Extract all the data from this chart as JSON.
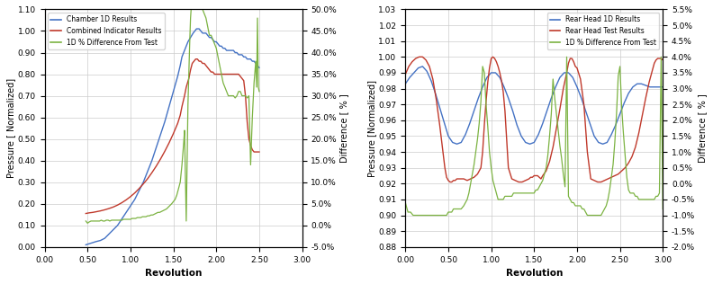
{
  "chart1": {
    "xlabel": "Revolution",
    "ylabel_left": "Pressure [ Normalized]",
    "ylabel_right": "Difference [ % ]",
    "xlim": [
      0.0,
      3.0
    ],
    "ylim_left": [
      0.0,
      1.1
    ],
    "ylim_right": [
      -0.05,
      0.5
    ],
    "yticks_left": [
      0.0,
      0.1,
      0.2,
      0.3,
      0.4,
      0.5,
      0.6,
      0.7,
      0.8,
      0.9,
      1.0,
      1.1
    ],
    "yticks_right_vals": [
      -0.05,
      0.0,
      0.05,
      0.1,
      0.15,
      0.2,
      0.25,
      0.3,
      0.35,
      0.4,
      0.45,
      0.5
    ],
    "yticks_right_labels": [
      "-5.0%",
      "0.0%",
      "5.0%",
      "10.0%",
      "15.0%",
      "20.0%",
      "25.0%",
      "30.0%",
      "35.0%",
      "40.0%",
      "45.0%",
      "50.0%"
    ],
    "xticks": [
      0.0,
      0.5,
      1.0,
      1.5,
      2.0,
      2.5,
      3.0
    ],
    "legend": [
      "Chamber 1D Results",
      "Combined Indicator Results",
      "1D % Difference From Test"
    ],
    "colors": [
      "#4472C4",
      "#C0392B",
      "#7CB342"
    ],
    "blue_x": [
      0.48,
      0.52,
      0.56,
      0.6,
      0.65,
      0.7,
      0.75,
      0.8,
      0.85,
      0.9,
      0.95,
      1.0,
      1.05,
      1.1,
      1.15,
      1.2,
      1.25,
      1.3,
      1.35,
      1.4,
      1.45,
      1.5,
      1.55,
      1.58,
      1.6,
      1.63,
      1.65,
      1.67,
      1.7,
      1.73,
      1.75,
      1.77,
      1.8,
      1.82,
      1.84,
      1.86,
      1.88,
      1.9,
      1.92,
      1.94,
      1.96,
      1.98,
      2.0,
      2.02,
      2.04,
      2.06,
      2.08,
      2.1,
      2.12,
      2.14,
      2.16,
      2.18,
      2.2,
      2.22,
      2.24,
      2.26,
      2.28,
      2.3,
      2.32,
      2.34,
      2.36,
      2.38,
      2.4,
      2.42,
      2.44,
      2.46,
      2.48,
      2.5
    ],
    "blue_y": [
      0.01,
      0.015,
      0.02,
      0.025,
      0.03,
      0.04,
      0.06,
      0.08,
      0.1,
      0.13,
      0.16,
      0.19,
      0.22,
      0.26,
      0.3,
      0.35,
      0.4,
      0.46,
      0.52,
      0.58,
      0.65,
      0.72,
      0.79,
      0.84,
      0.88,
      0.91,
      0.93,
      0.95,
      0.97,
      0.99,
      1.0,
      1.01,
      1.01,
      1.0,
      0.99,
      0.99,
      0.99,
      0.98,
      0.97,
      0.97,
      0.96,
      0.95,
      0.95,
      0.94,
      0.93,
      0.93,
      0.92,
      0.92,
      0.91,
      0.91,
      0.91,
      0.91,
      0.91,
      0.9,
      0.9,
      0.89,
      0.89,
      0.89,
      0.88,
      0.88,
      0.87,
      0.87,
      0.87,
      0.86,
      0.86,
      0.85,
      0.84,
      0.83
    ],
    "red_x": [
      0.48,
      0.52,
      0.56,
      0.6,
      0.65,
      0.7,
      0.75,
      0.8,
      0.85,
      0.9,
      0.95,
      1.0,
      1.05,
      1.1,
      1.15,
      1.2,
      1.25,
      1.3,
      1.35,
      1.4,
      1.45,
      1.5,
      1.55,
      1.58,
      1.6,
      1.63,
      1.65,
      1.68,
      1.7,
      1.72,
      1.74,
      1.76,
      1.78,
      1.8,
      1.82,
      1.84,
      1.86,
      1.88,
      1.9,
      1.92,
      1.94,
      1.96,
      1.98,
      2.0,
      2.02,
      2.04,
      2.06,
      2.08,
      2.1,
      2.12,
      2.14,
      2.16,
      2.18,
      2.2,
      2.22,
      2.24,
      2.26,
      2.28,
      2.3,
      2.32,
      2.34,
      2.36,
      2.38,
      2.4,
      2.42,
      2.44,
      2.46,
      2.48,
      2.5
    ],
    "red_y": [
      0.155,
      0.158,
      0.16,
      0.163,
      0.167,
      0.172,
      0.178,
      0.185,
      0.194,
      0.205,
      0.218,
      0.233,
      0.25,
      0.27,
      0.292,
      0.316,
      0.344,
      0.374,
      0.407,
      0.443,
      0.482,
      0.525,
      0.572,
      0.61,
      0.65,
      0.7,
      0.74,
      0.78,
      0.82,
      0.85,
      0.86,
      0.87,
      0.87,
      0.86,
      0.86,
      0.85,
      0.85,
      0.84,
      0.83,
      0.82,
      0.81,
      0.81,
      0.8,
      0.8,
      0.8,
      0.8,
      0.8,
      0.8,
      0.8,
      0.8,
      0.8,
      0.8,
      0.8,
      0.8,
      0.8,
      0.8,
      0.8,
      0.79,
      0.78,
      0.77,
      0.7,
      0.58,
      0.5,
      0.47,
      0.45,
      0.44,
      0.44,
      0.44,
      0.44
    ],
    "green_x": [
      0.48,
      0.5,
      0.52,
      0.54,
      0.56,
      0.58,
      0.6,
      0.62,
      0.64,
      0.66,
      0.68,
      0.7,
      0.72,
      0.74,
      0.76,
      0.78,
      0.8,
      0.82,
      0.84,
      0.86,
      0.88,
      0.9,
      0.92,
      0.94,
      0.96,
      0.98,
      1.0,
      1.02,
      1.04,
      1.06,
      1.08,
      1.1,
      1.12,
      1.14,
      1.16,
      1.18,
      1.2,
      1.22,
      1.24,
      1.26,
      1.28,
      1.3,
      1.32,
      1.34,
      1.36,
      1.38,
      1.4,
      1.42,
      1.44,
      1.46,
      1.48,
      1.5,
      1.52,
      1.54,
      1.56,
      1.58,
      1.6,
      1.62,
      1.63,
      1.65,
      1.67,
      1.69,
      1.7,
      1.72,
      1.74,
      1.76,
      1.78,
      1.8,
      1.82,
      1.84,
      1.86,
      1.88,
      1.9,
      1.92,
      1.94,
      1.96,
      1.98,
      2.0,
      2.02,
      2.04,
      2.06,
      2.08,
      2.1,
      2.12,
      2.14,
      2.16,
      2.18,
      2.2,
      2.22,
      2.24,
      2.26,
      2.28,
      2.3,
      2.32,
      2.34,
      2.36,
      2.38,
      2.4,
      2.42,
      2.44,
      2.46,
      2.47,
      2.48,
      2.49,
      2.5
    ],
    "green_y": [
      0.01,
      0.005,
      0.008,
      0.01,
      0.01,
      0.01,
      0.01,
      0.01,
      0.01,
      0.012,
      0.01,
      0.01,
      0.012,
      0.012,
      0.01,
      0.012,
      0.012,
      0.012,
      0.012,
      0.012,
      0.012,
      0.012,
      0.014,
      0.014,
      0.014,
      0.014,
      0.014,
      0.016,
      0.016,
      0.016,
      0.018,
      0.018,
      0.018,
      0.02,
      0.02,
      0.02,
      0.022,
      0.022,
      0.024,
      0.024,
      0.026,
      0.028,
      0.03,
      0.03,
      0.032,
      0.034,
      0.036,
      0.038,
      0.042,
      0.046,
      0.05,
      0.055,
      0.06,
      0.07,
      0.085,
      0.1,
      0.14,
      0.19,
      0.22,
      0.01,
      0.28,
      0.42,
      0.48,
      0.54,
      0.57,
      0.58,
      0.58,
      0.55,
      0.52,
      0.5,
      0.49,
      0.48,
      0.46,
      0.44,
      0.44,
      0.43,
      0.42,
      0.41,
      0.39,
      0.37,
      0.35,
      0.33,
      0.32,
      0.31,
      0.3,
      0.3,
      0.3,
      0.3,
      0.295,
      0.3,
      0.31,
      0.31,
      0.3,
      0.3,
      0.3,
      0.295,
      0.3,
      0.14,
      0.25,
      0.33,
      0.38,
      0.32,
      0.48,
      0.32,
      0.31
    ]
  },
  "chart2": {
    "xlabel": "Revolution",
    "ylabel_left": "Pressure [Normalized]",
    "ylabel_right": "Difference [ % ]",
    "xlim": [
      0.0,
      3.0
    ],
    "ylim_left": [
      0.88,
      1.03
    ],
    "ylim_right": [
      -0.02,
      0.055
    ],
    "yticks_left": [
      0.88,
      0.89,
      0.9,
      0.91,
      0.92,
      0.93,
      0.94,
      0.95,
      0.96,
      0.97,
      0.98,
      0.99,
      1.0,
      1.01,
      1.02,
      1.03
    ],
    "yticks_right_vals": [
      -0.02,
      -0.015,
      -0.01,
      -0.005,
      0.0,
      0.005,
      0.01,
      0.015,
      0.02,
      0.025,
      0.03,
      0.035,
      0.04,
      0.045,
      0.05,
      0.055
    ],
    "yticks_right_labels": [
      "-2.0%",
      "-1.5%",
      "-1.0%",
      "-0.5%",
      "0.0%",
      "0.5%",
      "1.0%",
      "1.5%",
      "2.0%",
      "2.5%",
      "3.0%",
      "3.5%",
      "4.0%",
      "4.5%",
      "5.0%",
      "5.5%"
    ],
    "xticks": [
      0.0,
      0.5,
      1.0,
      1.5,
      2.0,
      2.5,
      3.0
    ],
    "legend": [
      "Rear Head 1D Results",
      "Rear Head Test Results",
      "1D % Difference From Test"
    ],
    "colors": [
      "#4472C4",
      "#C0392B",
      "#7CB342"
    ],
    "blue_x": [
      0.0,
      0.05,
      0.1,
      0.15,
      0.2,
      0.25,
      0.3,
      0.35,
      0.4,
      0.45,
      0.5,
      0.55,
      0.6,
      0.65,
      0.7,
      0.75,
      0.8,
      0.85,
      0.9,
      0.95,
      1.0,
      1.05,
      1.1,
      1.15,
      1.2,
      1.25,
      1.3,
      1.35,
      1.4,
      1.45,
      1.5,
      1.55,
      1.6,
      1.65,
      1.7,
      1.75,
      1.8,
      1.85,
      1.9,
      1.95,
      2.0,
      2.05,
      2.1,
      2.15,
      2.2,
      2.25,
      2.3,
      2.35,
      2.4,
      2.45,
      2.5,
      2.55,
      2.6,
      2.65,
      2.7,
      2.75,
      2.8,
      2.85,
      2.9,
      2.95,
      3.0
    ],
    "blue_y": [
      0.983,
      0.987,
      0.99,
      0.993,
      0.994,
      0.991,
      0.985,
      0.977,
      0.968,
      0.959,
      0.95,
      0.946,
      0.945,
      0.946,
      0.951,
      0.958,
      0.966,
      0.974,
      0.981,
      0.987,
      0.99,
      0.99,
      0.987,
      0.981,
      0.974,
      0.966,
      0.957,
      0.95,
      0.946,
      0.945,
      0.946,
      0.951,
      0.958,
      0.966,
      0.974,
      0.981,
      0.987,
      0.99,
      0.99,
      0.987,
      0.981,
      0.974,
      0.966,
      0.958,
      0.95,
      0.946,
      0.945,
      0.946,
      0.951,
      0.957,
      0.964,
      0.971,
      0.977,
      0.981,
      0.983,
      0.983,
      0.982,
      0.981,
      0.981,
      0.981,
      0.981
    ],
    "red_x": [
      0.0,
      0.04,
      0.08,
      0.12,
      0.16,
      0.2,
      0.24,
      0.28,
      0.32,
      0.36,
      0.4,
      0.44,
      0.46,
      0.48,
      0.5,
      0.52,
      0.54,
      0.56,
      0.58,
      0.6,
      0.64,
      0.68,
      0.72,
      0.76,
      0.8,
      0.84,
      0.88,
      0.9,
      0.92,
      0.94,
      0.96,
      0.98,
      1.0,
      1.02,
      1.04,
      1.06,
      1.08,
      1.1,
      1.12,
      1.14,
      1.16,
      1.18,
      1.2,
      1.24,
      1.28,
      1.32,
      1.36,
      1.4,
      1.44,
      1.46,
      1.48,
      1.5,
      1.52,
      1.54,
      1.56,
      1.58,
      1.6,
      1.64,
      1.68,
      1.72,
      1.76,
      1.8,
      1.84,
      1.88,
      1.9,
      1.92,
      1.94,
      1.96,
      1.98,
      2.0,
      2.04,
      2.08,
      2.12,
      2.16,
      2.2,
      2.24,
      2.28,
      2.32,
      2.36,
      2.4,
      2.44,
      2.48,
      2.52,
      2.56,
      2.6,
      2.64,
      2.68,
      2.72,
      2.76,
      2.8,
      2.84,
      2.88,
      2.9,
      2.92,
      2.94,
      2.96,
      2.98,
      3.0
    ],
    "red_y": [
      0.989,
      0.994,
      0.997,
      0.999,
      1.0,
      1.0,
      0.998,
      0.994,
      0.986,
      0.973,
      0.957,
      0.939,
      0.93,
      0.924,
      0.922,
      0.921,
      0.921,
      0.922,
      0.922,
      0.923,
      0.923,
      0.923,
      0.922,
      0.923,
      0.924,
      0.926,
      0.93,
      0.94,
      0.957,
      0.972,
      0.984,
      0.993,
      0.999,
      1.0,
      0.999,
      0.997,
      0.994,
      0.99,
      0.985,
      0.978,
      0.966,
      0.948,
      0.93,
      0.923,
      0.922,
      0.921,
      0.921,
      0.922,
      0.923,
      0.924,
      0.924,
      0.925,
      0.925,
      0.925,
      0.924,
      0.923,
      0.925,
      0.928,
      0.934,
      0.943,
      0.955,
      0.967,
      0.98,
      0.99,
      0.996,
      0.999,
      0.999,
      0.997,
      0.994,
      0.993,
      0.986,
      0.97,
      0.94,
      0.923,
      0.922,
      0.921,
      0.921,
      0.922,
      0.923,
      0.924,
      0.925,
      0.926,
      0.928,
      0.93,
      0.933,
      0.937,
      0.943,
      0.952,
      0.963,
      0.974,
      0.984,
      0.992,
      0.996,
      0.998,
      0.999,
      0.999,
      0.999,
      0.998
    ],
    "green_x": [
      0.0,
      0.03,
      0.06,
      0.09,
      0.12,
      0.15,
      0.18,
      0.21,
      0.24,
      0.27,
      0.3,
      0.33,
      0.36,
      0.39,
      0.42,
      0.45,
      0.48,
      0.5,
      0.52,
      0.54,
      0.56,
      0.58,
      0.6,
      0.62,
      0.65,
      0.68,
      0.7,
      0.72,
      0.74,
      0.76,
      0.78,
      0.8,
      0.82,
      0.84,
      0.86,
      0.88,
      0.9,
      0.92,
      0.94,
      0.96,
      0.98,
      1.0,
      1.02,
      1.04,
      1.06,
      1.08,
      1.1,
      1.12,
      1.14,
      1.16,
      1.18,
      1.2,
      1.22,
      1.24,
      1.26,
      1.28,
      1.3,
      1.32,
      1.34,
      1.36,
      1.38,
      1.4,
      1.42,
      1.44,
      1.46,
      1.48,
      1.5,
      1.52,
      1.54,
      1.56,
      1.58,
      1.6,
      1.62,
      1.64,
      1.66,
      1.68,
      1.7,
      1.72,
      1.74,
      1.76,
      1.78,
      1.8,
      1.82,
      1.84,
      1.86,
      1.88,
      1.9,
      1.92,
      1.94,
      1.96,
      1.98,
      2.0,
      2.02,
      2.04,
      2.06,
      2.08,
      2.1,
      2.12,
      2.14,
      2.16,
      2.18,
      2.2,
      2.22,
      2.24,
      2.26,
      2.28,
      2.3,
      2.32,
      2.34,
      2.36,
      2.38,
      2.4,
      2.42,
      2.44,
      2.46,
      2.48,
      2.5,
      2.52,
      2.54,
      2.56,
      2.58,
      2.6,
      2.62,
      2.64,
      2.66,
      2.68,
      2.7,
      2.72,
      2.74,
      2.76,
      2.78,
      2.8,
      2.82,
      2.84,
      2.86,
      2.88,
      2.9,
      2.92,
      2.94,
      2.96,
      2.98,
      3.0
    ],
    "green_y": [
      -0.006,
      -0.009,
      -0.009,
      -0.01,
      -0.01,
      -0.01,
      -0.01,
      -0.01,
      -0.01,
      -0.01,
      -0.01,
      -0.01,
      -0.01,
      -0.01,
      -0.01,
      -0.01,
      -0.01,
      -0.009,
      -0.009,
      -0.009,
      -0.008,
      -0.008,
      -0.008,
      -0.008,
      -0.008,
      -0.007,
      -0.006,
      -0.005,
      -0.003,
      0.0,
      0.003,
      0.006,
      0.01,
      0.014,
      0.019,
      0.026,
      0.037,
      0.035,
      0.025,
      0.018,
      0.01,
      0.005,
      0.001,
      -0.001,
      -0.003,
      -0.005,
      -0.005,
      -0.005,
      -0.005,
      -0.004,
      -0.004,
      -0.004,
      -0.004,
      -0.004,
      -0.003,
      -0.003,
      -0.003,
      -0.003,
      -0.003,
      -0.003,
      -0.003,
      -0.003,
      -0.003,
      -0.003,
      -0.003,
      -0.003,
      -0.003,
      -0.002,
      -0.002,
      -0.001,
      0.0,
      0.001,
      0.003,
      0.005,
      0.009,
      0.015,
      0.022,
      0.033,
      0.027,
      0.022,
      0.017,
      0.012,
      0.008,
      0.003,
      -0.001,
      0.04,
      -0.004,
      -0.005,
      -0.006,
      -0.006,
      -0.007,
      -0.007,
      -0.007,
      -0.007,
      -0.008,
      -0.008,
      -0.009,
      -0.01,
      -0.01,
      -0.01,
      -0.01,
      -0.01,
      -0.01,
      -0.01,
      -0.01,
      -0.01,
      -0.009,
      -0.008,
      -0.007,
      -0.005,
      -0.002,
      0.002,
      0.006,
      0.013,
      0.022,
      0.034,
      0.037,
      0.024,
      0.016,
      0.009,
      0.002,
      -0.002,
      -0.003,
      -0.003,
      -0.003,
      -0.004,
      -0.004,
      -0.005,
      -0.005,
      -0.005,
      -0.005,
      -0.005,
      -0.005,
      -0.005,
      -0.005,
      -0.005,
      -0.005,
      -0.004,
      -0.004,
      -0.003,
      0.04,
      -0.008
    ]
  }
}
